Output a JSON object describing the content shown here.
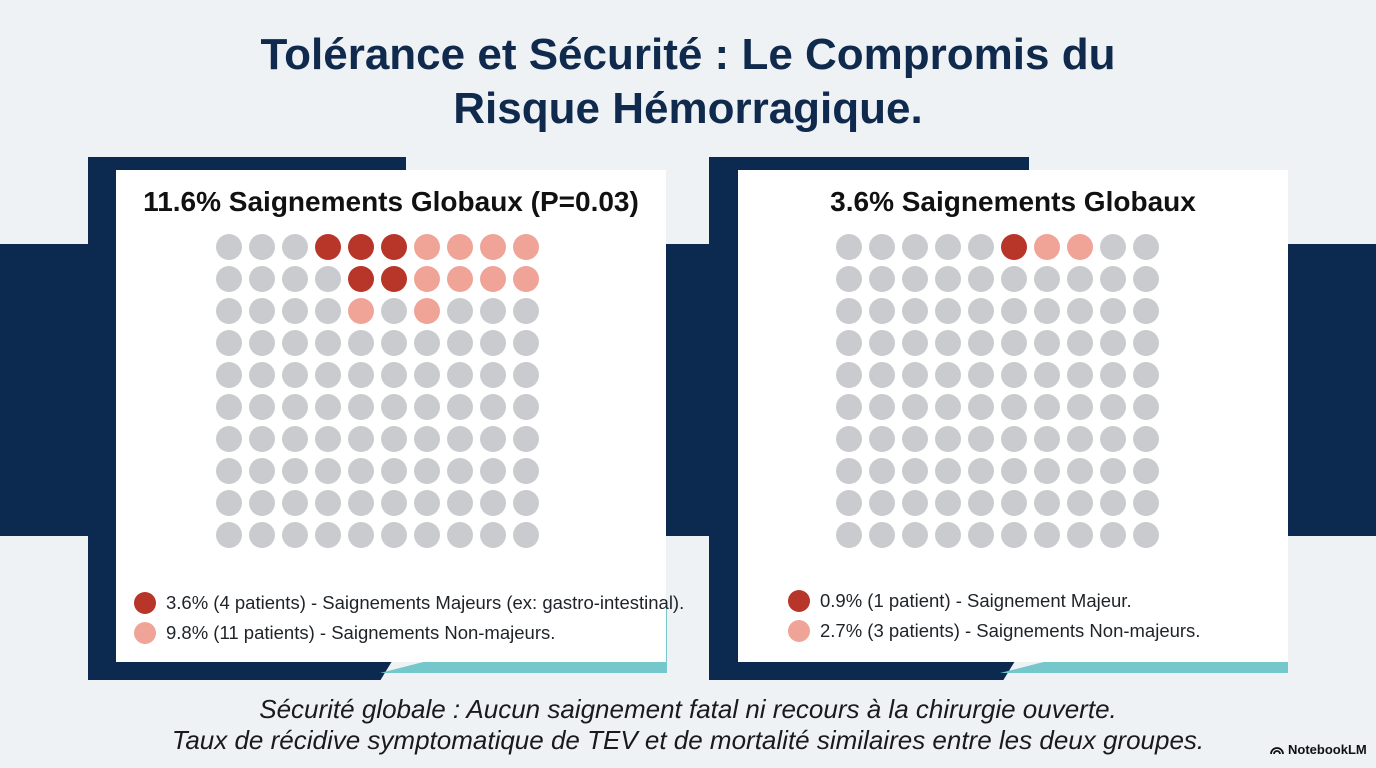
{
  "title": {
    "line1": "Tolérance et Sécurité : Le Compromis du",
    "line2": "Risque Hémorragique."
  },
  "chart_data": [
    {
      "type": "waffle",
      "title": "11.6% Saignements Globaux (P=0.03)",
      "total_units": 100,
      "series": [
        {
          "name": "3.6% (4 patients) - Saignements Majeurs (ex: gastro-intestinal).",
          "units": 5,
          "color": "#b8352a"
        },
        {
          "name": "9.8% (11 patients) - Saignements Non-majeurs.",
          "units": 10,
          "color": "#f0a498"
        }
      ],
      "cells": [
        "g",
        "g",
        "g",
        "M",
        "M",
        "M",
        "m",
        "m",
        "m",
        "m",
        "g",
        "g",
        "g",
        "g",
        "M",
        "M",
        "m",
        "m",
        "m",
        "m",
        "g",
        "g",
        "g",
        "g",
        "m",
        "g",
        "m",
        "g",
        "g",
        "g"
      ],
      "base_color": "#c9cbce"
    },
    {
      "type": "waffle",
      "title": "3.6% Saignements Globaux",
      "total_units": 100,
      "series": [
        {
          "name": "0.9% (1 patient) - Saignement Majeur.",
          "units": 1,
          "color": "#b8352a"
        },
        {
          "name": "2.7% (3 patients) - Saignements Non-majeurs.",
          "units": 2,
          "color": "#f0a498"
        }
      ],
      "cells": [
        "g",
        "g",
        "g",
        "g",
        "g",
        "M",
        "m",
        "m",
        "g",
        "g"
      ],
      "base_color": "#c9cbce"
    }
  ],
  "footer": {
    "line1": "Sécurité globale : Aucun saignement fatal ni recours à la chirurgie ouverte.",
    "line2": "Taux de récidive symptomatique de TEV et de mortalité similaires entre les deux groupes."
  },
  "brand": {
    "label": "NotebookLM",
    "icon": "notebooklm-logo-icon"
  },
  "colors": {
    "navy": "#0c2a4f",
    "teal": "#74c8cc",
    "major": "#b8352a",
    "minor": "#f0a498",
    "base": "#c9cbce"
  }
}
